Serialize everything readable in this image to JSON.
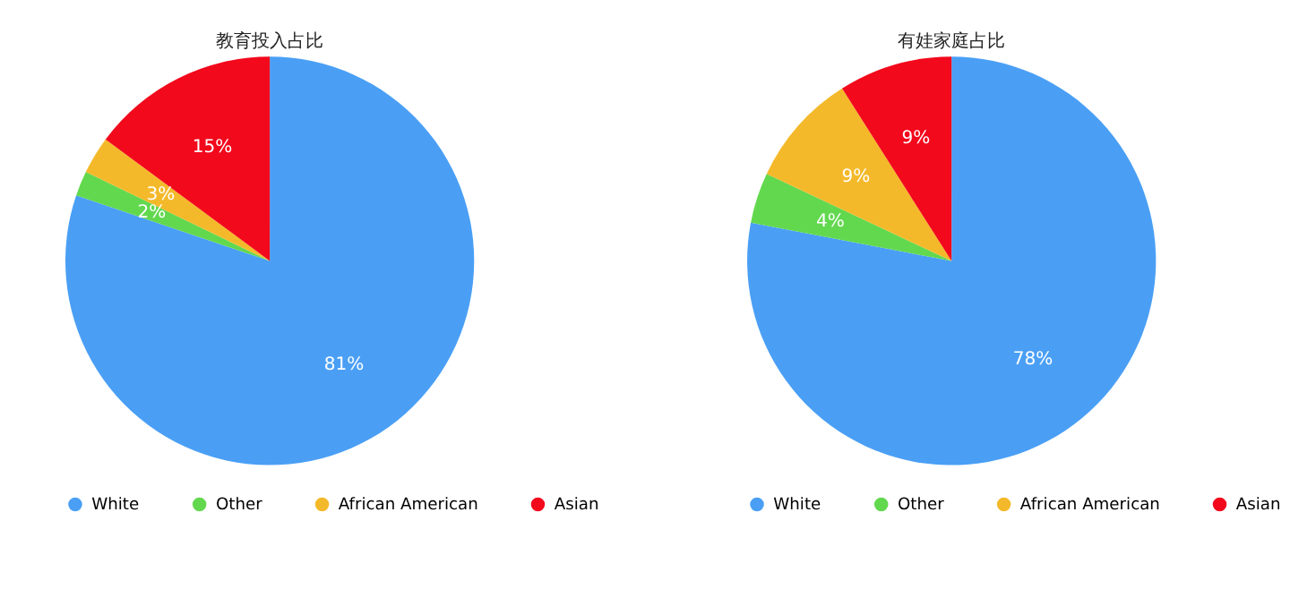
{
  "chart_data": [
    {
      "type": "pie",
      "title": "教育投入占比",
      "categories": [
        "White",
        "Other",
        "African American",
        "Asian"
      ],
      "values": [
        81,
        2,
        3,
        15
      ],
      "value_labels": [
        "81%",
        "2%",
        "3%",
        "15%"
      ],
      "colors": [
        "#4a9ff5",
        "#62d84e",
        "#f4b92a",
        "#f2091c"
      ],
      "legend": "bottom"
    },
    {
      "type": "pie",
      "title": "有娃家庭占比",
      "categories": [
        "White",
        "Other",
        "African American",
        "Asian"
      ],
      "values": [
        78,
        4,
        9,
        9
      ],
      "value_labels": [
        "78%",
        "4%",
        "9%",
        "9%"
      ],
      "colors": [
        "#4a9ff5",
        "#62d84e",
        "#f4b92a",
        "#f2091c"
      ],
      "legend": "bottom"
    }
  ]
}
